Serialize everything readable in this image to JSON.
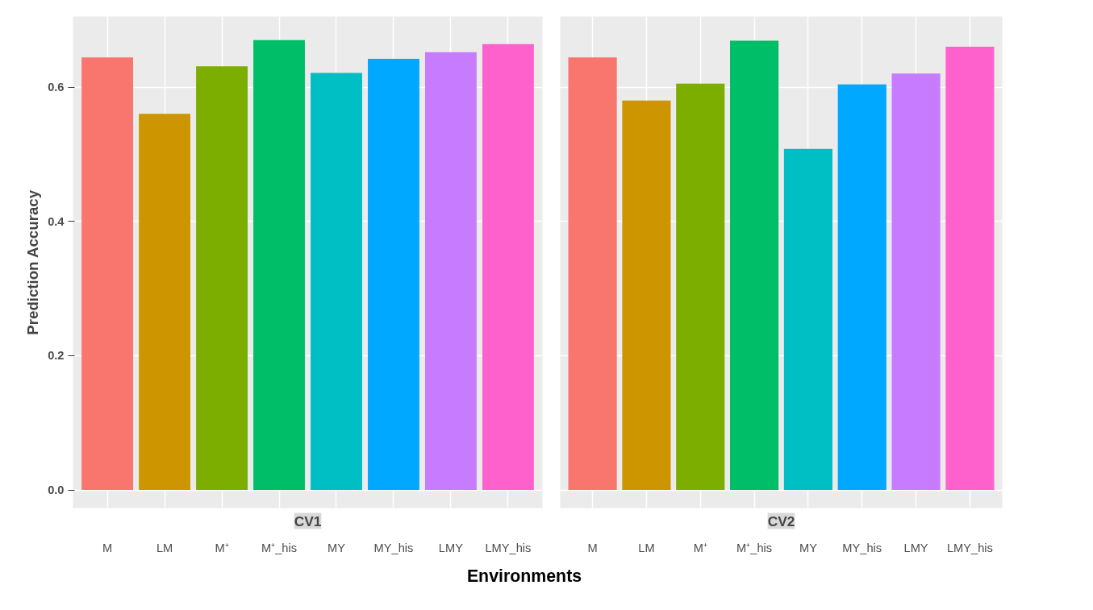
{
  "chart_data": [
    {
      "type": "bar",
      "title": "CV1",
      "xlabel": "Environments",
      "ylabel": "Prediction Accuracy",
      "categories": [
        "M",
        "LM",
        "M⁺",
        "M⁺_his",
        "MY",
        "MY_his",
        "LMY",
        "LMY_his"
      ],
      "values": [
        0.644,
        0.56,
        0.631,
        0.67,
        0.621,
        0.642,
        0.652,
        0.664
      ],
      "colors": [
        "#f8766d",
        "#cd9600",
        "#7cae00",
        "#00be67",
        "#00bfc4",
        "#00a9ff",
        "#c77cff",
        "#ff61cc"
      ],
      "ylim": [
        -0.027,
        0.705
      ],
      "yticks": [
        {
          "value": 0,
          "label": "0.0"
        },
        0.2,
        0.4,
        0.6
      ],
      "grid": true
    },
    {
      "type": "bar",
      "title": "CV2",
      "categories": [
        "M",
        "LM",
        "M⁺",
        "M⁺_his",
        "MY",
        "MY_his",
        "LMY",
        "LMY_his"
      ],
      "values": [
        0.644,
        0.58,
        0.605,
        0.669,
        0.508,
        0.604,
        0.62,
        0.66
      ],
      "colors": [
        "#f8766d",
        "#cd9600",
        "#7cae00",
        "#00be67",
        "#00bfc4",
        "#00a9ff",
        "#c77cff",
        "#ff61cc"
      ],
      "ylim": [
        -0.027,
        0.705
      ],
      "yticks": [
        {
          "value": 0,
          "label": null
        },
        {
          "value": 0.2,
          "label": null
        },
        {
          "value": 0.4,
          "label": null
        },
        {
          "value": 0.6,
          "label": null
        }
      ],
      "grid": true,
      "tick_labels": "x"
    }
  ]
}
